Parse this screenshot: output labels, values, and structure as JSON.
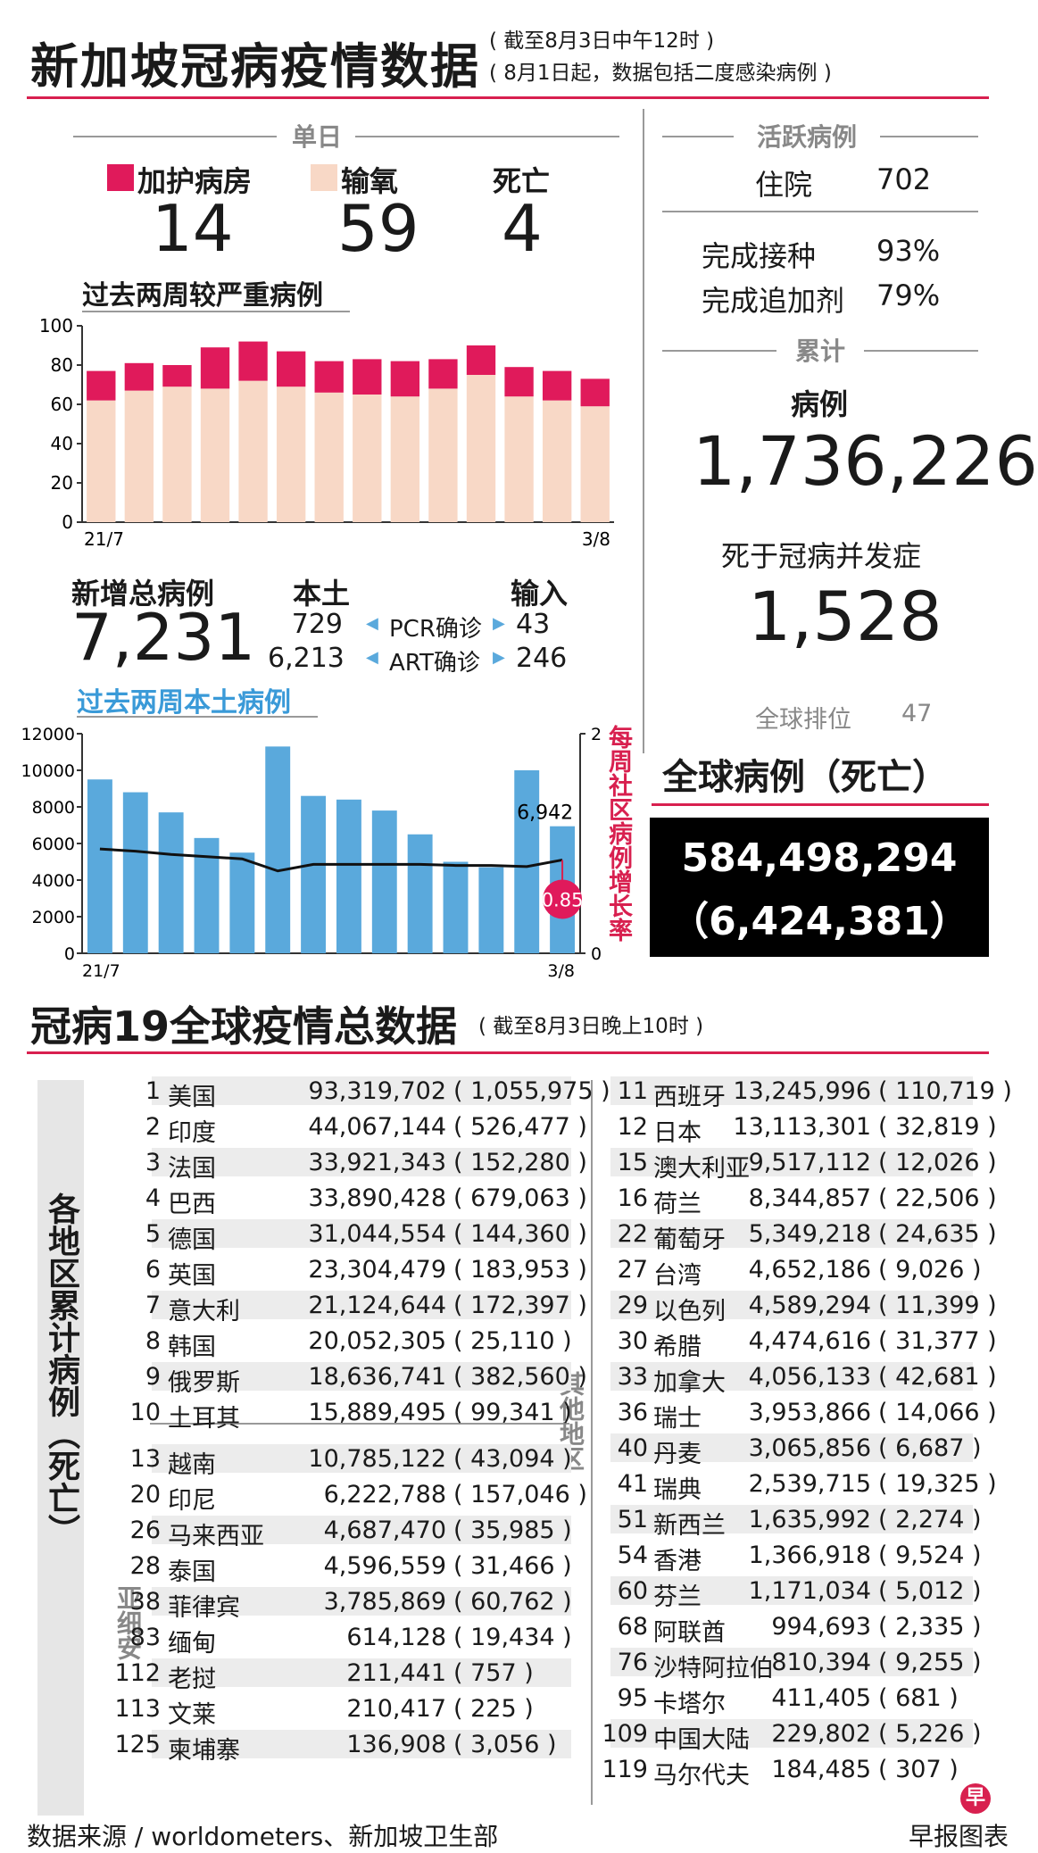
{
  "header": {
    "title": "新加坡冠病疫情数据",
    "note1": "( 截至8月3日中午12时 )",
    "note2": "( 8月1日起，数据包括二度感染病例 )"
  },
  "daily": {
    "heading": "单日",
    "icu_label": "加护病房",
    "icu_value": "14",
    "oxygen_label": "输氧",
    "oxygen_value": "59",
    "death_label": "死亡",
    "death_value": "4",
    "colors": {
      "icu": "#e01a5b",
      "oxygen": "#f8d8c6"
    }
  },
  "active": {
    "heading": "活跃病例",
    "hosp_label": "住院",
    "hosp_value": "702",
    "vacc_label": "完成接种",
    "vacc_value": "93%",
    "booster_label": "完成追加剂",
    "booster_value": "79%"
  },
  "cumulative": {
    "heading": "累计",
    "cases_label": "病例",
    "cases_value": "1,736,226",
    "deaths_label": "死于冠病并发症",
    "deaths_value": "1,528",
    "rank_label": "全球排位",
    "rank_value": "47"
  },
  "global_box": {
    "heading": "全球病例（死亡）",
    "cases": "584,498,294",
    "deaths": "（6,424,381）"
  },
  "new_cases": {
    "label": "新增总病例",
    "value": "7,231",
    "local_label": "本土",
    "import_label": "输入",
    "pcr_label": "PCR确诊",
    "art_label": "ART确诊",
    "pcr_local": "729",
    "pcr_import": "43",
    "art_local": "6,213",
    "art_import": "246"
  },
  "chart_data": [
    {
      "type": "bar",
      "title": "过去两周较严重病例",
      "stacked": true,
      "x_start_label": "21/7",
      "x_end_label": "3/8",
      "ylim": [
        0,
        100
      ],
      "yticks": [
        "0",
        "20",
        "40",
        "60",
        "80",
        "100"
      ],
      "series": [
        {
          "name": "输氧",
          "values": [
            62,
            67,
            69,
            68,
            72,
            69,
            66,
            65,
            64,
            68,
            75,
            64,
            62,
            59
          ]
        },
        {
          "name": "加护病房",
          "values": [
            15,
            14,
            11,
            21,
            20,
            18,
            16,
            18,
            18,
            15,
            15,
            15,
            15,
            14
          ]
        }
      ]
    },
    {
      "type": "bar",
      "title": "过去两周本土病例",
      "x_start_label": "21/7",
      "x_end_label": "3/8",
      "ylim": [
        0,
        12000
      ],
      "yticks": [
        "0",
        "2000",
        "4000",
        "6000",
        "8000",
        "10000",
        "12000"
      ],
      "values": [
        9500,
        8800,
        7700,
        6300,
        5500,
        11300,
        8600,
        8400,
        7800,
        6500,
        5000,
        4700,
        10000,
        6942
      ],
      "bar_color": "#5aa9dc",
      "bar_label": "6,942",
      "line": {
        "name": "每周社区病例增长率",
        "ylim": [
          0,
          2
        ],
        "yticks": [
          "0",
          "2"
        ],
        "values": [
          0.95,
          0.93,
          0.9,
          0.88,
          0.86,
          0.75,
          0.81,
          0.81,
          0.81,
          0.81,
          0.8,
          0.8,
          0.79,
          0.85
        ],
        "end_label": "0.85"
      }
    }
  ],
  "global_table": {
    "title": "冠病19全球疫情总数据",
    "note": "( 截至8月3日晚上10时 )",
    "side_label": "各地区累计病例（死亡）",
    "asean_label": "亚细安",
    "other_label": "其他地区",
    "top10": [
      {
        "rank": "1",
        "country": "美国",
        "cases": "93,319,702",
        "deaths": "( 1,055,975 )"
      },
      {
        "rank": "2",
        "country": "印度",
        "cases": "44,067,144",
        "deaths": "( 526,477 )"
      },
      {
        "rank": "3",
        "country": "法国",
        "cases": "33,921,343",
        "deaths": "( 152,280 )"
      },
      {
        "rank": "4",
        "country": "巴西",
        "cases": "33,890,428",
        "deaths": "( 679,063 )"
      },
      {
        "rank": "5",
        "country": "德国",
        "cases": "31,044,554",
        "deaths": "( 144,360 )"
      },
      {
        "rank": "6",
        "country": "英国",
        "cases": "23,304,479",
        "deaths": "( 183,953 )"
      },
      {
        "rank": "7",
        "country": "意大利",
        "cases": "21,124,644",
        "deaths": "( 172,397 )"
      },
      {
        "rank": "8",
        "country": "韩国",
        "cases": "20,052,305",
        "deaths": "( 25,110 )"
      },
      {
        "rank": "9",
        "country": "俄罗斯",
        "cases": "18,636,741",
        "deaths": "( 382,560 )"
      },
      {
        "rank": "10",
        "country": "土耳其",
        "cases": "15,889,495",
        "deaths": "( 99,341 )"
      }
    ],
    "asean": [
      {
        "rank": "13",
        "country": "越南",
        "cases": "10,785,122",
        "deaths": "( 43,094 )"
      },
      {
        "rank": "20",
        "country": "印尼",
        "cases": "6,222,788",
        "deaths": "( 157,046 )"
      },
      {
        "rank": "26",
        "country": "马来西亚",
        "cases": "4,687,470",
        "deaths": "( 35,985 )"
      },
      {
        "rank": "28",
        "country": "泰国",
        "cases": "4,596,559",
        "deaths": "( 31,466 )"
      },
      {
        "rank": "38",
        "country": "菲律宾",
        "cases": "3,785,869",
        "deaths": "( 60,762 )"
      },
      {
        "rank": "83",
        "country": "缅甸",
        "cases": "614,128",
        "deaths": "( 19,434 )"
      },
      {
        "rank": "112",
        "country": "老挝",
        "cases": "211,441",
        "deaths": "( 757 )"
      },
      {
        "rank": "113",
        "country": "文莱",
        "cases": "210,417",
        "deaths": "( 225 )"
      },
      {
        "rank": "125",
        "country": "柬埔寨",
        "cases": "136,908",
        "deaths": "( 3,056 )"
      }
    ],
    "others": [
      {
        "rank": "11",
        "country": "西班牙",
        "cases": "13,245,996",
        "deaths": "( 110,719 )"
      },
      {
        "rank": "12",
        "country": "日本",
        "cases": "13,113,301",
        "deaths": "( 32,819 )"
      },
      {
        "rank": "15",
        "country": "澳大利亚",
        "cases": "9,517,112",
        "deaths": "( 12,026 )"
      },
      {
        "rank": "16",
        "country": "荷兰",
        "cases": "8,344,857",
        "deaths": "( 22,506 )"
      },
      {
        "rank": "22",
        "country": "葡萄牙",
        "cases": "5,349,218",
        "deaths": "( 24,635 )"
      },
      {
        "rank": "27",
        "country": "台湾",
        "cases": "4,652,186",
        "deaths": "( 9,026 )"
      },
      {
        "rank": "29",
        "country": "以色列",
        "cases": "4,589,294",
        "deaths": "( 11,399 )"
      },
      {
        "rank": "30",
        "country": "希腊",
        "cases": "4,474,616",
        "deaths": "( 31,377 )"
      },
      {
        "rank": "33",
        "country": "加拿大",
        "cases": "4,056,133",
        "deaths": "( 42,681 )"
      },
      {
        "rank": "36",
        "country": "瑞士",
        "cases": "3,953,866",
        "deaths": "( 14,066 )"
      },
      {
        "rank": "40",
        "country": "丹麦",
        "cases": "3,065,856",
        "deaths": "( 6,687 )"
      },
      {
        "rank": "41",
        "country": "瑞典",
        "cases": "2,539,715",
        "deaths": "( 19,325 )"
      },
      {
        "rank": "51",
        "country": "新西兰",
        "cases": "1,635,992",
        "deaths": "( 2,274 )"
      },
      {
        "rank": "54",
        "country": "香港",
        "cases": "1,366,918",
        "deaths": "( 9,524 )"
      },
      {
        "rank": "60",
        "country": "芬兰",
        "cases": "1,171,034",
        "deaths": "( 5,012 )"
      },
      {
        "rank": "68",
        "country": "阿联酋",
        "cases": "994,693",
        "deaths": "( 2,335 )"
      },
      {
        "rank": "76",
        "country": "沙特阿拉伯",
        "cases": "810,394",
        "deaths": "( 9,255 )"
      },
      {
        "rank": "95",
        "country": "卡塔尔",
        "cases": "411,405",
        "deaths": "( 681 )"
      },
      {
        "rank": "109",
        "country": "中国大陆",
        "cases": "229,802",
        "deaths": "( 5,226 )"
      },
      {
        "rank": "119",
        "country": "马尔代夫",
        "cases": "184,485",
        "deaths": "( 307 )"
      }
    ]
  },
  "footer": {
    "source": "数据来源 / worldometers、新加坡卫生部",
    "credit": "早报图表",
    "logo_glyph": "早"
  }
}
